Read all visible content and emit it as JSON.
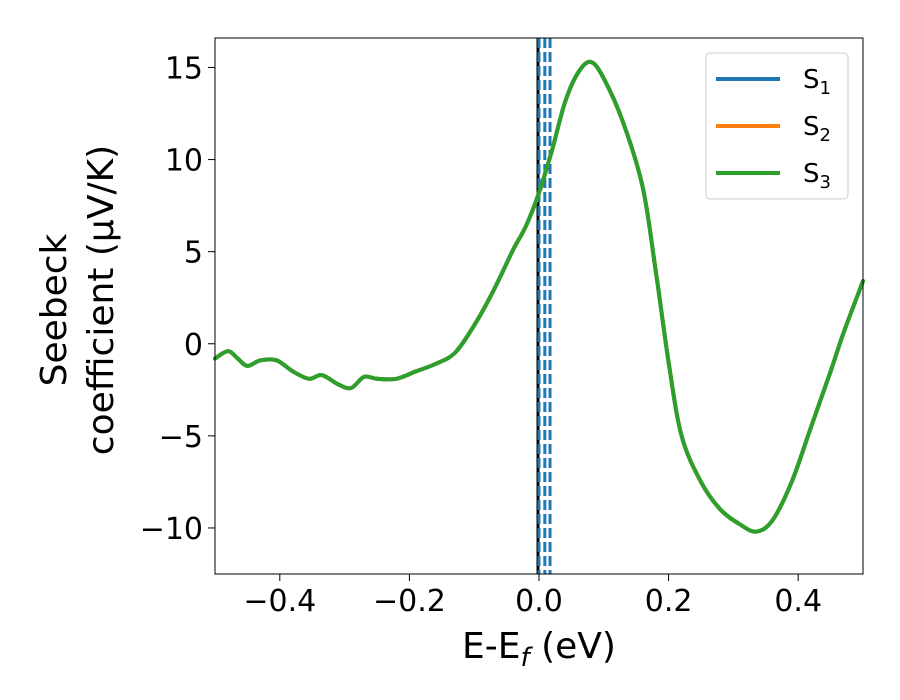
{
  "chart_data": {
    "type": "line",
    "xlabel": {
      "main": "E-E",
      "sub": "f",
      "unit": " (eV)"
    },
    "ylabel": {
      "line1": "Seebeck",
      "line2": "coefficient  (μV/K)"
    },
    "xlim": [
      -0.5,
      0.5
    ],
    "ylim": [
      -12.5,
      16.6
    ],
    "xticks": [
      -0.4,
      -0.2,
      0.0,
      0.2,
      0.4
    ],
    "xtick_labels": [
      "−0.4",
      "−0.2",
      "0.0",
      "0.2",
      "0.4"
    ],
    "yticks": [
      15,
      10,
      5,
      0,
      -5,
      -10
    ],
    "ytick_labels": [
      "15",
      "10",
      "5",
      "0",
      "−5",
      "−10"
    ],
    "grid": false,
    "legend_position": "top-right",
    "series": [
      {
        "name": "S",
        "sub": "1",
        "color": "#1f77b4",
        "x": [
          -0.5,
          -0.48,
          -0.465,
          -0.45,
          -0.43,
          -0.405,
          -0.38,
          -0.355,
          -0.335,
          -0.31,
          -0.29,
          -0.27,
          -0.25,
          -0.22,
          -0.19,
          -0.16,
          -0.13,
          -0.1,
          -0.07,
          -0.04,
          -0.02,
          0.0,
          0.02,
          0.04,
          0.06,
          0.08,
          0.1,
          0.13,
          0.16,
          0.18,
          0.2,
          0.22,
          0.25,
          0.28,
          0.31,
          0.335,
          0.36,
          0.39,
          0.42,
          0.45,
          0.47,
          0.5
        ],
        "y": [
          -0.8,
          -0.4,
          -0.8,
          -1.2,
          -0.9,
          -0.9,
          -1.5,
          -1.9,
          -1.7,
          -2.2,
          -2.4,
          -1.8,
          -1.9,
          -1.9,
          -1.5,
          -1.1,
          -0.5,
          1.0,
          2.9,
          5.1,
          6.4,
          8.2,
          10.5,
          13.1,
          14.7,
          15.3,
          14.4,
          12.0,
          8.5,
          4.0,
          -1.0,
          -5.0,
          -7.5,
          -9.0,
          -9.8,
          -10.2,
          -9.6,
          -7.5,
          -4.5,
          -1.5,
          0.6,
          3.4
        ]
      },
      {
        "name": "S",
        "sub": "2",
        "color": "#ff7f0e",
        "x": [
          -0.5,
          -0.48,
          -0.465,
          -0.45,
          -0.43,
          -0.405,
          -0.38,
          -0.355,
          -0.335,
          -0.31,
          -0.29,
          -0.27,
          -0.25,
          -0.22,
          -0.19,
          -0.16,
          -0.13,
          -0.1,
          -0.07,
          -0.04,
          -0.02,
          0.0,
          0.02,
          0.04,
          0.06,
          0.08,
          0.1,
          0.13,
          0.16,
          0.18,
          0.2,
          0.22,
          0.25,
          0.28,
          0.31,
          0.335,
          0.36,
          0.39,
          0.42,
          0.45,
          0.47,
          0.5
        ],
        "y": [
          -0.8,
          -0.4,
          -0.8,
          -1.2,
          -0.9,
          -0.9,
          -1.5,
          -1.9,
          -1.7,
          -2.2,
          -2.4,
          -1.8,
          -1.9,
          -1.9,
          -1.5,
          -1.1,
          -0.5,
          1.0,
          2.9,
          5.1,
          6.4,
          8.2,
          10.5,
          13.1,
          14.7,
          15.3,
          14.4,
          12.0,
          8.5,
          4.0,
          -1.0,
          -5.0,
          -7.5,
          -9.0,
          -9.8,
          -10.2,
          -9.6,
          -7.5,
          -4.5,
          -1.5,
          0.6,
          3.4
        ]
      },
      {
        "name": "S",
        "sub": "3",
        "color": "#2ca02c",
        "x": [
          -0.5,
          -0.48,
          -0.465,
          -0.45,
          -0.43,
          -0.405,
          -0.38,
          -0.355,
          -0.335,
          -0.31,
          -0.29,
          -0.27,
          -0.25,
          -0.22,
          -0.19,
          -0.16,
          -0.13,
          -0.1,
          -0.07,
          -0.04,
          -0.02,
          0.0,
          0.02,
          0.04,
          0.06,
          0.08,
          0.1,
          0.13,
          0.16,
          0.18,
          0.2,
          0.22,
          0.25,
          0.28,
          0.31,
          0.335,
          0.36,
          0.39,
          0.42,
          0.45,
          0.47,
          0.5
        ],
        "y": [
          -0.8,
          -0.4,
          -0.8,
          -1.2,
          -0.9,
          -0.9,
          -1.5,
          -1.9,
          -1.7,
          -2.2,
          -2.4,
          -1.8,
          -1.9,
          -1.9,
          -1.5,
          -1.1,
          -0.5,
          1.0,
          2.9,
          5.1,
          6.4,
          8.2,
          10.5,
          13.1,
          14.7,
          15.3,
          14.4,
          12.0,
          8.5,
          4.0,
          -1.0,
          -5.0,
          -7.5,
          -9.0,
          -9.8,
          -10.2,
          -9.6,
          -7.5,
          -4.5,
          -1.5,
          0.6,
          3.4
        ]
      }
    ],
    "reference_lines": [
      {
        "x": 0.0,
        "color": "#000000",
        "style": "solid"
      },
      {
        "x": 0.0,
        "color": "#1f77b4",
        "style": "dashed"
      },
      {
        "x": 0.009,
        "color": "#1f77b4",
        "style": "dashed"
      },
      {
        "x": 0.017,
        "color": "#1f77b4",
        "style": "dashed"
      }
    ]
  }
}
